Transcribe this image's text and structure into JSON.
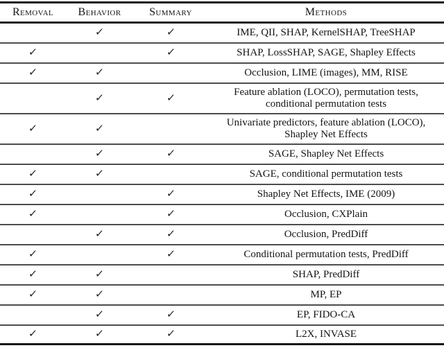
{
  "table": {
    "check_glyph": "✓",
    "columns": [
      {
        "key": "removal",
        "label": "Removal"
      },
      {
        "key": "behavior",
        "label": "Behavior"
      },
      {
        "key": "summary",
        "label": "Summary"
      },
      {
        "key": "methods",
        "label": "Methods"
      }
    ],
    "rows": [
      {
        "removal": false,
        "behavior": true,
        "summary": true,
        "methods": "IME, QII, SHAP, KernelSHAP, TreeSHAP"
      },
      {
        "removal": true,
        "behavior": false,
        "summary": true,
        "methods": "SHAP, LossSHAP, SAGE, Shapley Effects"
      },
      {
        "removal": true,
        "behavior": true,
        "summary": false,
        "methods": "Occlusion, LIME (images), MM, RISE"
      },
      {
        "removal": false,
        "behavior": true,
        "summary": true,
        "methods": "Feature ablation (LOCO), permutation tests,\nconditional permutation tests"
      },
      {
        "removal": true,
        "behavior": true,
        "summary": false,
        "methods": "Univariate predictors, feature ablation (LOCO),\nShapley Net Effects"
      },
      {
        "removal": false,
        "behavior": true,
        "summary": true,
        "methods": "SAGE, Shapley Net Effects"
      },
      {
        "removal": true,
        "behavior": true,
        "summary": false,
        "methods": "SAGE, conditional permutation tests"
      },
      {
        "removal": true,
        "behavior": false,
        "summary": true,
        "methods": "Shapley Net Effects, IME (2009)"
      },
      {
        "removal": true,
        "behavior": false,
        "summary": true,
        "methods": "Occlusion, CXPlain"
      },
      {
        "removal": false,
        "behavior": true,
        "summary": true,
        "methods": "Occlusion, PredDiff"
      },
      {
        "removal": true,
        "behavior": false,
        "summary": true,
        "methods": "Conditional permutation tests, PredDiff"
      },
      {
        "removal": true,
        "behavior": true,
        "summary": false,
        "methods": "SHAP, PredDiff"
      },
      {
        "removal": true,
        "behavior": true,
        "summary": false,
        "methods": "MP, EP"
      },
      {
        "removal": false,
        "behavior": true,
        "summary": true,
        "methods": "EP, FIDO-CA"
      },
      {
        "removal": true,
        "behavior": true,
        "summary": true,
        "methods": "L2X, INVASE"
      }
    ]
  },
  "colors": {
    "text": "#141414",
    "rule_heavy": "#161616",
    "rule_light": "#4d4d4d",
    "background": "#ffffff"
  }
}
